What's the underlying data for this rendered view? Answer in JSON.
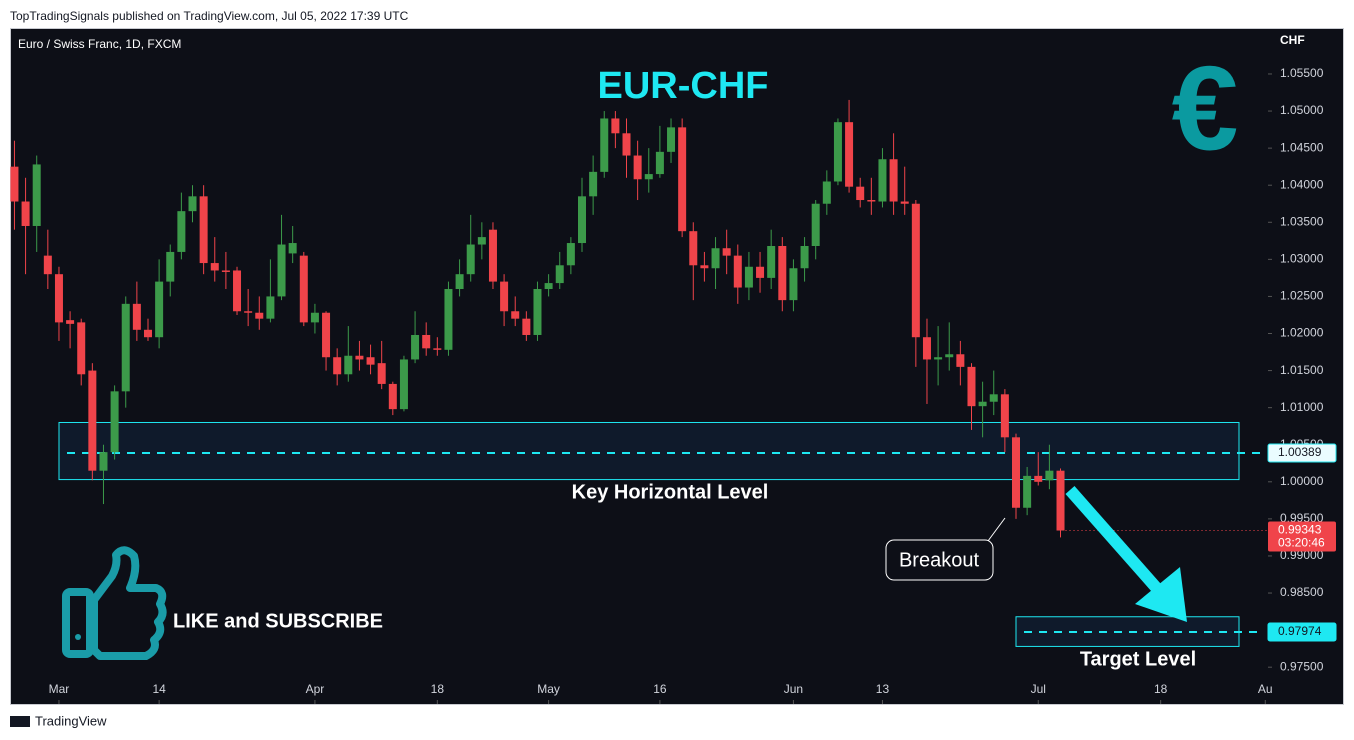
{
  "header": {
    "publisher": "TopTradingSignals published on TradingView.com, Jul 05, 2022 17:39 UTC"
  },
  "footer": {
    "brand": "TradingView"
  },
  "chart_data": {
    "type": "candlestick",
    "title": "EUR-CHF",
    "symbol": "Euro / Swiss Franc, 1D, FXCM",
    "currency": "CHF",
    "up_color": "#3c9a4a",
    "down_color": "#f0444a",
    "grid": false,
    "open": [
      1.0425,
      1.0378,
      1.0345,
      1.0305,
      1.028,
      1.0218,
      1.0215,
      1.015,
      1.0015,
      1.004,
      1.0122,
      1.024,
      1.0205,
      1.0195,
      1.027,
      1.031,
      1.0365,
      1.0385,
      1.0295,
      1.0285,
      1.0285,
      1.023,
      1.0228,
      1.022,
      1.025,
      1.0308,
      1.0305,
      1.0215,
      1.0228,
      1.0168,
      1.0145,
      1.017,
      1.0168,
      1.016,
      1.0132,
      1.0098,
      1.0165,
      1.0198,
      1.018,
      1.0178,
      1.026,
      1.028,
      1.032,
      1.034,
      1.027,
      1.023,
      1.022,
      1.0198,
      1.026,
      1.0268,
      1.0292,
      1.0322,
      1.0385,
      1.0418,
      1.049,
      1.047,
      1.044,
      1.0408,
      1.0415,
      1.0445,
      1.0478,
      1.0338,
      1.0292,
      1.0288,
      1.0315,
      1.0305,
      1.0262,
      1.029,
      1.0275,
      1.0318,
      1.0245,
      1.0288,
      1.0318,
      1.0375,
      1.0405,
      1.0485,
      1.0398,
      1.038,
      1.0378,
      1.0435,
      1.0378,
      1.0375,
      1.0195,
      1.0165,
      1.0168,
      1.0172,
      1.0155,
      1.0102,
      1.0108,
      1.0118,
      1.006,
      0.9965,
      1.0008,
      1.0002,
      1.0015
    ],
    "high": [
      1.046,
      1.041,
      1.044,
      1.034,
      1.029,
      1.023,
      1.022,
      1.016,
      1.005,
      1.013,
      1.025,
      1.027,
      1.022,
      1.03,
      1.032,
      1.039,
      1.04,
      1.04,
      1.033,
      1.031,
      1.029,
      1.026,
      1.025,
      1.03,
      1.036,
      1.0345,
      1.031,
      1.024,
      1.023,
      1.018,
      1.021,
      1.019,
      1.0185,
      1.019,
      1.0135,
      1.017,
      1.023,
      1.0215,
      1.0195,
      1.027,
      1.03,
      1.036,
      1.035,
      1.035,
      1.028,
      1.025,
      1.023,
      1.027,
      1.028,
      1.031,
      1.033,
      1.041,
      1.044,
      1.05,
      1.05,
      1.049,
      1.046,
      1.045,
      1.048,
      1.049,
      1.049,
      1.035,
      1.031,
      1.033,
      1.034,
      1.032,
      1.031,
      1.031,
      1.034,
      1.033,
      1.03,
      1.033,
      1.038,
      1.042,
      1.049,
      1.0515,
      1.041,
      1.041,
      1.045,
      1.047,
      1.0425,
      1.038,
      1.022,
      1.021,
      1.0215,
      1.019,
      1.016,
      1.0135,
      1.015,
      1.0125,
      1.0065,
      1.002,
      1.004,
      1.005,
      1.0018
    ],
    "low": [
      1.034,
      1.028,
      1.031,
      1.026,
      1.019,
      1.018,
      1.013,
      1.0002,
      0.997,
      1.003,
      1.01,
      1.019,
      1.019,
      1.018,
      1.025,
      1.03,
      1.035,
      1.028,
      1.027,
      1.026,
      1.0225,
      1.021,
      1.0205,
      1.0215,
      1.0245,
      1.0295,
      1.021,
      1.02,
      1.015,
      1.013,
      1.0135,
      1.015,
      1.0145,
      1.0125,
      1.009,
      1.0095,
      1.016,
      1.017,
      1.017,
      1.017,
      1.025,
      1.027,
      1.03,
      1.026,
      1.021,
      1.021,
      1.019,
      1.019,
      1.025,
      1.026,
      1.028,
      1.031,
      1.036,
      1.041,
      1.045,
      1.041,
      1.038,
      1.039,
      1.041,
      1.043,
      1.033,
      1.0245,
      1.027,
      1.026,
      1.028,
      1.024,
      1.0245,
      1.0255,
      1.026,
      1.023,
      1.023,
      1.027,
      1.03,
      1.036,
      1.04,
      1.039,
      1.037,
      1.036,
      1.037,
      1.036,
      1.036,
      1.0155,
      1.0105,
      1.013,
      1.015,
      1.013,
      1.007,
      1.006,
      1.009,
      1.004,
      0.995,
      0.9955,
      0.9995,
      0.999,
      0.9925
    ],
    "close": [
      1.0378,
      1.0345,
      1.0428,
      1.028,
      1.0215,
      1.0213,
      1.0145,
      1.0015,
      1.004,
      1.0122,
      1.024,
      1.0205,
      1.0195,
      1.027,
      1.031,
      1.0365,
      1.0385,
      1.0295,
      1.0285,
      1.0283,
      1.023,
      1.0228,
      1.022,
      1.025,
      1.032,
      1.0322,
      1.0215,
      1.0228,
      1.0168,
      1.0145,
      1.017,
      1.0165,
      1.0158,
      1.0132,
      1.0098,
      1.0165,
      1.0198,
      1.018,
      1.0178,
      1.026,
      1.028,
      1.032,
      1.033,
      1.027,
      1.023,
      1.022,
      1.0198,
      1.026,
      1.0268,
      1.0292,
      1.0322,
      1.0385,
      1.0418,
      1.049,
      1.047,
      1.044,
      1.0408,
      1.0415,
      1.0445,
      1.0478,
      1.0338,
      1.0292,
      1.0288,
      1.0315,
      1.0305,
      1.0262,
      1.029,
      1.0275,
      1.0318,
      1.0245,
      1.0288,
      1.0318,
      1.0375,
      1.0405,
      1.0485,
      1.0398,
      1.038,
      1.0378,
      1.0435,
      1.0378,
      1.0375,
      1.0195,
      1.0165,
      1.0168,
      1.0172,
      1.0155,
      1.0102,
      1.0108,
      1.0118,
      1.006,
      0.9965,
      1.0008,
      1.0,
      1.0015,
      0.99343
    ],
    "xlim": [
      -0.4,
      112.6
    ],
    "xticks": [
      {
        "value": 4,
        "label": "Mar"
      },
      {
        "value": 13,
        "label": "14"
      },
      {
        "value": 27,
        "label": "Apr"
      },
      {
        "value": 38,
        "label": "18"
      },
      {
        "value": 48,
        "label": "May"
      },
      {
        "value": 58,
        "label": "16"
      },
      {
        "value": 70,
        "label": "Jun"
      },
      {
        "value": 78,
        "label": "13"
      },
      {
        "value": 92,
        "label": "Jul"
      },
      {
        "value": 103,
        "label": "18"
      },
      {
        "value": 112.4,
        "label": "Au"
      }
    ],
    "ylim": [
      0.9699,
      1.0612
    ],
    "yticks": [
      {
        "value": 0.975,
        "label": "0.97500"
      },
      {
        "value": 0.98,
        "label": "0.98000"
      },
      {
        "value": 0.985,
        "label": "0.98500"
      },
      {
        "value": 0.99,
        "label": "0.99000"
      },
      {
        "value": 0.995,
        "label": "0.99500"
      },
      {
        "value": 1.0,
        "label": "1.00000"
      },
      {
        "value": 1.005,
        "label": "1.00500"
      },
      {
        "value": 1.01,
        "label": "1.01000"
      },
      {
        "value": 1.015,
        "label": "1.01500"
      },
      {
        "value": 1.02,
        "label": "1.02000"
      },
      {
        "value": 1.025,
        "label": "1.02500"
      },
      {
        "value": 1.03,
        "label": "1.03000"
      },
      {
        "value": 1.035,
        "label": "1.03500"
      },
      {
        "value": 1.04,
        "label": "1.04000"
      },
      {
        "value": 1.045,
        "label": "1.04500"
      },
      {
        "value": 1.05,
        "label": "1.05000"
      },
      {
        "value": 1.055,
        "label": "1.05500"
      }
    ],
    "key_level": {
      "label": "Key Horizontal Level",
      "value": 1.00389,
      "zone": [
        1.0003,
        1.008
      ]
    },
    "target_level": {
      "label": "Target Level",
      "value": 0.97974,
      "zone": [
        0.9778,
        0.9818
      ]
    },
    "last_price": {
      "value": 0.99343,
      "countdown": "03:20:46"
    },
    "annotations": {
      "breakout": "Breakout",
      "call_to_action": "LIKE and SUBSCRIBE",
      "currency_icon": "€"
    }
  }
}
